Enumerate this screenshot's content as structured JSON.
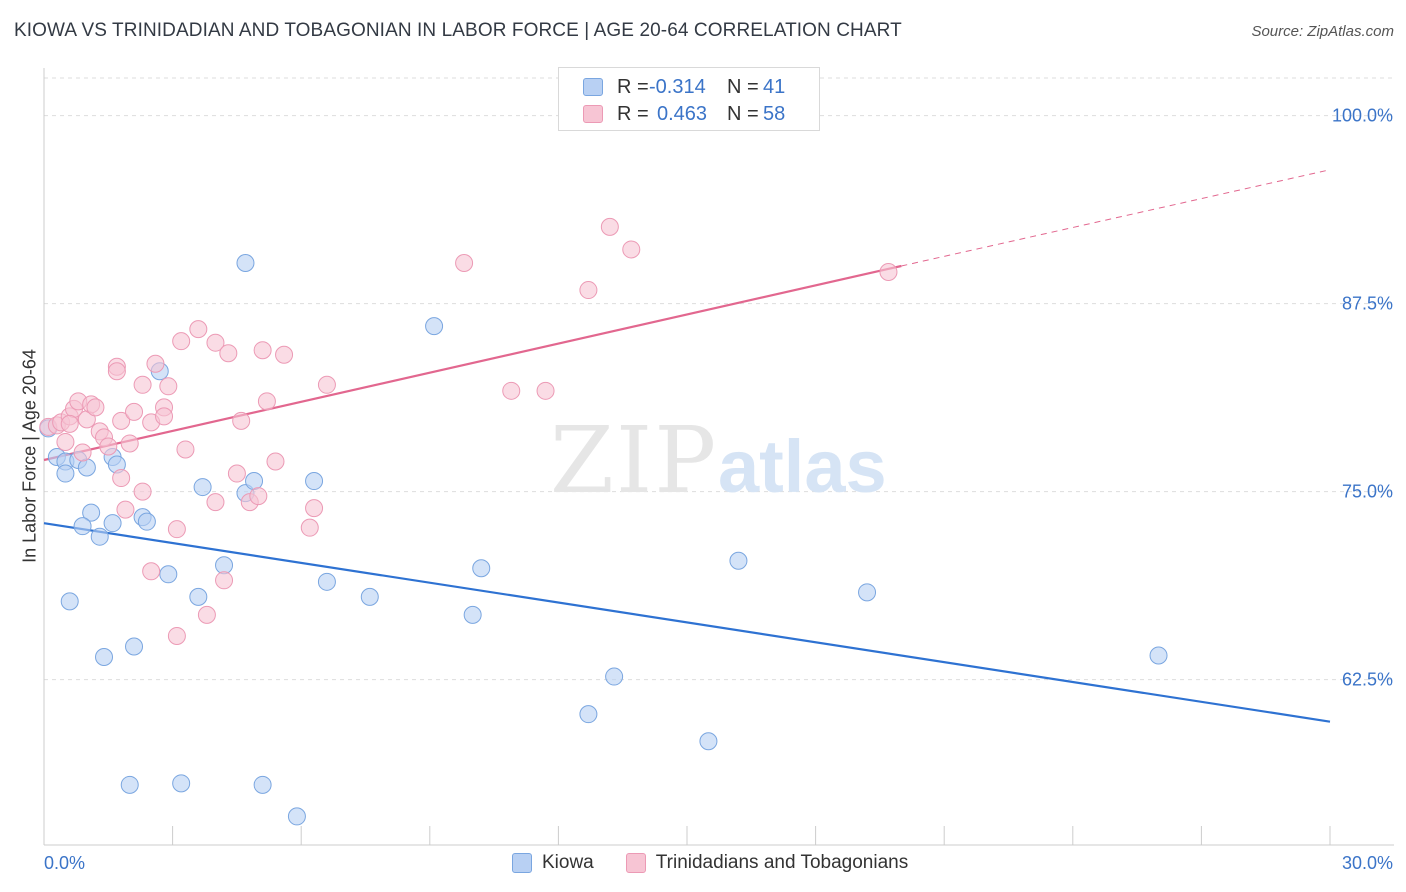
{
  "title": "KIOWA VS TRINIDADIAN AND TOBAGONIAN IN LABOR FORCE | AGE 20-64 CORRELATION CHART",
  "source": "Source: ZipAtlas.com",
  "watermark": {
    "zip": "ZIP",
    "atlas": "atlas"
  },
  "legend": {
    "rows": [
      {
        "r_label": "R =",
        "r_value": "-0.314",
        "n_label": "N =",
        "n_value": "41"
      },
      {
        "r_label": "R =",
        "r_value": "0.463",
        "n_label": "N =",
        "n_value": "58"
      }
    ]
  },
  "bottom_legend": {
    "kiowa": "Kiowa",
    "trinidad": "Trinidadians and Tobagonians"
  },
  "colors": {
    "kiowa_fill": "#b8d0f3",
    "kiowa_stroke": "#7aa6e0",
    "kiowa_line": "#2e72d2",
    "trin_fill": "#f7c5d4",
    "trin_stroke": "#ec9ab5",
    "trin_line": "#e2678f",
    "axis_text": "#3b74c8",
    "grid": "#dddddd"
  },
  "chart_data": {
    "type": "scatter",
    "title": "KIOWA VS TRINIDADIAN AND TOBAGONIAN IN LABOR FORCE | AGE 20-64 CORRELATION CHART",
    "xlabel": "",
    "ylabel": "In Labor Force | Age 20-64",
    "xlim": [
      0,
      30
    ],
    "ylim": [
      51.5,
      102.5
    ],
    "x_tick_labels": [
      "0.0%",
      "30.0%"
    ],
    "y_ticks": [
      62.5,
      75.0,
      87.5,
      100.0
    ],
    "y_tick_labels": [
      "62.5%",
      "75.0%",
      "87.5%",
      "100.0%"
    ],
    "grid": true,
    "series": [
      {
        "name": "Kiowa",
        "points": [
          [
            0.1,
            79.2
          ],
          [
            0.3,
            77.3
          ],
          [
            0.5,
            77.0
          ],
          [
            0.5,
            76.2
          ],
          [
            0.8,
            77.1
          ],
          [
            1.0,
            76.6
          ],
          [
            1.1,
            73.6
          ],
          [
            0.9,
            72.7
          ],
          [
            1.3,
            72.0
          ],
          [
            0.6,
            67.7
          ],
          [
            1.6,
            77.3
          ],
          [
            1.7,
            76.8
          ],
          [
            1.6,
            72.9
          ],
          [
            2.3,
            73.3
          ],
          [
            2.4,
            73.0
          ],
          [
            2.7,
            83.0
          ],
          [
            2.9,
            69.5
          ],
          [
            1.4,
            64.0
          ],
          [
            2.1,
            64.7
          ],
          [
            3.7,
            75.3
          ],
          [
            3.6,
            68.0
          ],
          [
            4.2,
            70.1
          ],
          [
            4.7,
            74.9
          ],
          [
            4.7,
            90.2
          ],
          [
            4.9,
            75.7
          ],
          [
            6.3,
            75.7
          ],
          [
            6.6,
            69.0
          ],
          [
            5.1,
            55.5
          ],
          [
            3.2,
            55.6
          ],
          [
            5.9,
            53.4
          ],
          [
            7.6,
            68.0
          ],
          [
            9.1,
            86.0
          ],
          [
            10.2,
            69.9
          ],
          [
            10.0,
            66.8
          ],
          [
            13.3,
            62.7
          ],
          [
            12.7,
            60.2
          ],
          [
            15.5,
            58.4
          ],
          [
            16.2,
            70.4
          ],
          [
            19.2,
            68.3
          ],
          [
            26.0,
            64.1
          ],
          [
            2.0,
            55.5
          ]
        ]
      },
      {
        "name": "Trinidadians and Tobagonians",
        "points": [
          [
            0.1,
            79.3
          ],
          [
            0.3,
            79.4
          ],
          [
            0.4,
            79.6
          ],
          [
            0.5,
            78.3
          ],
          [
            0.6,
            80.0
          ],
          [
            0.7,
            80.5
          ],
          [
            0.8,
            81.0
          ],
          [
            0.6,
            79.5
          ],
          [
            0.9,
            77.6
          ],
          [
            1.0,
            79.8
          ],
          [
            1.1,
            80.8
          ],
          [
            1.2,
            80.6
          ],
          [
            1.3,
            79.0
          ],
          [
            1.4,
            78.6
          ],
          [
            1.5,
            78.0
          ],
          [
            1.7,
            83.3
          ],
          [
            1.7,
            83.0
          ],
          [
            1.8,
            79.7
          ],
          [
            2.0,
            78.2
          ],
          [
            2.1,
            80.3
          ],
          [
            2.3,
            75.0
          ],
          [
            2.3,
            82.1
          ],
          [
            2.5,
            79.6
          ],
          [
            2.6,
            83.5
          ],
          [
            2.8,
            80.6
          ],
          [
            2.8,
            80.0
          ],
          [
            2.9,
            82.0
          ],
          [
            3.2,
            85.0
          ],
          [
            3.3,
            77.8
          ],
          [
            3.6,
            85.8
          ],
          [
            4.0,
            84.9
          ],
          [
            4.3,
            84.2
          ],
          [
            4.5,
            76.2
          ],
          [
            4.6,
            79.7
          ],
          [
            4.8,
            74.3
          ],
          [
            5.0,
            74.7
          ],
          [
            5.1,
            84.4
          ],
          [
            5.2,
            81.0
          ],
          [
            5.4,
            77.0
          ],
          [
            5.6,
            84.1
          ],
          [
            6.3,
            73.9
          ],
          [
            6.2,
            72.6
          ],
          [
            6.6,
            82.1
          ],
          [
            3.1,
            72.5
          ],
          [
            2.5,
            69.7
          ],
          [
            3.1,
            65.4
          ],
          [
            3.8,
            66.8
          ],
          [
            4.2,
            69.1
          ],
          [
            4.0,
            74.3
          ],
          [
            1.9,
            73.8
          ],
          [
            1.8,
            75.9
          ],
          [
            9.8,
            90.2
          ],
          [
            10.9,
            81.7
          ],
          [
            11.7,
            81.7
          ],
          [
            13.2,
            92.6
          ],
          [
            13.7,
            91.1
          ],
          [
            12.7,
            88.4
          ],
          [
            19.7,
            89.6
          ]
        ]
      }
    ],
    "trendlines": [
      {
        "series": "Kiowa",
        "x": [
          0,
          30
        ],
        "y": [
          72.9,
          59.7
        ],
        "style": "solid"
      },
      {
        "series": "Trinidadians and Tobagonians",
        "x": [
          0,
          20
        ],
        "y": [
          77.1,
          90.0
        ],
        "style": "solid"
      },
      {
        "series": "Trinidadians and Tobagonians",
        "x": [
          20,
          30
        ],
        "y": [
          90.0,
          96.4
        ],
        "style": "dashed"
      }
    ]
  }
}
